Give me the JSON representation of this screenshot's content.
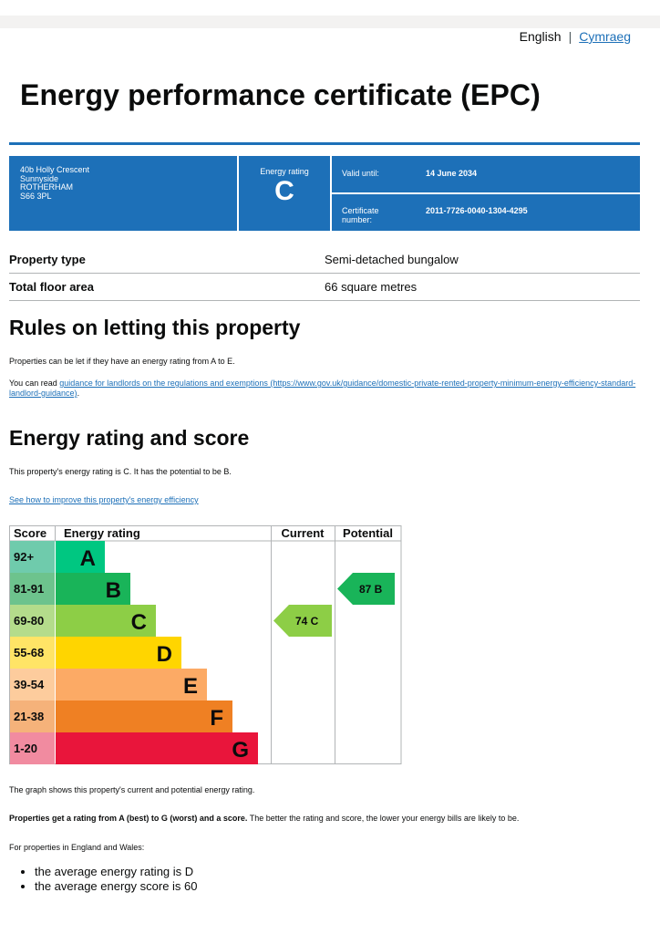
{
  "language": {
    "english": "English",
    "welsh": "Cymraeg"
  },
  "title": "Energy performance certificate (EPC)",
  "address": [
    "40b Holly Crescent",
    "Sunnyside",
    "ROTHERHAM",
    "S66 3PL"
  ],
  "summary": {
    "rating_label": "Energy rating",
    "rating": "C",
    "valid_label": "Valid until:",
    "valid_value": "14 June 2034",
    "cert_label": "Certificate number:",
    "cert_value": "2011-7726-0040-1304-4295"
  },
  "property": [
    {
      "label": "Property type",
      "value": "Semi-detached bungalow"
    },
    {
      "label": "Total floor area",
      "value": "66 square metres"
    }
  ],
  "rules": {
    "heading": "Rules on letting this property",
    "p1": "Properties can be let if they have an energy rating from A to E.",
    "p2_prefix": "You can read ",
    "p2_link": "guidance for landlords on the regulations and exemptions (https://www.gov.uk/guidance/domestic-private-rented-property-minimum-energy-efficiency-standard-landlord-guidance)",
    "p2_suffix": "."
  },
  "energy": {
    "heading": "Energy rating and score",
    "p1": "This property's energy rating is C. It has the potential to be B.",
    "link": "See how to improve this property's energy efficiency"
  },
  "chart_data": {
    "type": "table",
    "headers": {
      "score": "Score",
      "rating": "Energy rating",
      "current": "Current",
      "potential": "Potential"
    },
    "bands": [
      {
        "score": "92+",
        "letter": "A",
        "color": "#00c781"
      },
      {
        "score": "81-91",
        "letter": "B",
        "color": "#19b459"
      },
      {
        "score": "69-80",
        "letter": "C",
        "color": "#8dce46"
      },
      {
        "score": "55-68",
        "letter": "D",
        "color": "#ffd500"
      },
      {
        "score": "39-54",
        "letter": "E",
        "color": "#fcaa65"
      },
      {
        "score": "21-38",
        "letter": "F",
        "color": "#ef8023"
      },
      {
        "score": "1-20",
        "letter": "G",
        "color": "#e9153b"
      }
    ],
    "score_colors": [
      "#6fcbac",
      "#6dc38d",
      "#b4dc8b",
      "#ffe466",
      "#fdcc9d",
      "#f5b27a",
      "#f18ba0"
    ],
    "current": {
      "score": 74,
      "letter": "C",
      "color": "#8dce46"
    },
    "potential": {
      "score": 87,
      "letter": "B",
      "color": "#19b459"
    }
  },
  "after_chart": {
    "p1": "The graph shows this property's current and potential energy rating.",
    "p2_bold": "Properties get a rating from A (best) to G (worst) and a score.",
    "p2_rest": " The better the rating and score, the lower your energy bills are likely to be.",
    "p3": "For properties in England and Wales:",
    "bullets": [
      "the average energy rating is D",
      "the average energy score is 60"
    ]
  }
}
